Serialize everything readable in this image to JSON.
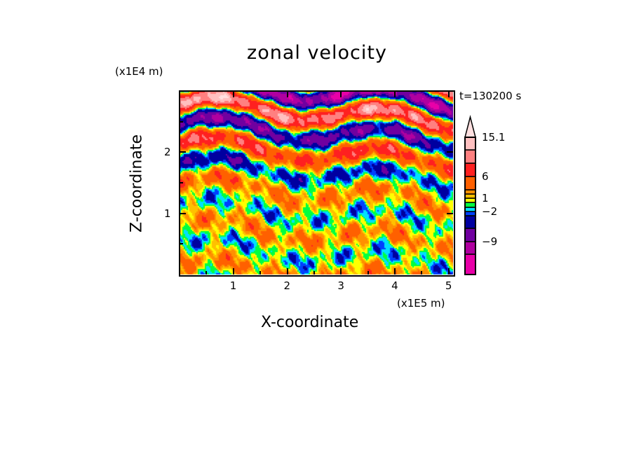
{
  "chart_data": {
    "type": "heatmap",
    "title": "zonal velocity",
    "xlabel": "X-coordinate",
    "ylabel": "Z-coordinate",
    "x_unit": "(x1E5 m)",
    "y_unit": "(x1E4 m)",
    "annotation": "t=130200 s",
    "xlim": [
      0,
      5.08
    ],
    "ylim": [
      0,
      3.0
    ],
    "xticks": [
      {
        "v": 1,
        "label": "1"
      },
      {
        "v": 2,
        "label": "2"
      },
      {
        "v": 3,
        "label": "3"
      },
      {
        "v": 4,
        "label": "4"
      },
      {
        "v": 5,
        "label": "5"
      }
    ],
    "yticks": [
      {
        "v": 1,
        "label": "1"
      },
      {
        "v": 2,
        "label": "2"
      }
    ],
    "colorbar": {
      "levels": [
        -15,
        -12,
        -9,
        -6,
        -3,
        -2,
        -1,
        0,
        1,
        2,
        3,
        6,
        9,
        12,
        15.1
      ],
      "colors": [
        "#e800a8",
        "#b000a0",
        "#7000a0",
        "#0000a0",
        "#0040ff",
        "#00e0ff",
        "#00ff40",
        "#ffff00",
        "#ffc000",
        "#ff9000",
        "#ff6000",
        "#ff2020",
        "#ff8080",
        "#ffc0c0"
      ],
      "over_color": "#ffe0e0",
      "labels": [
        {
          "v": 15.1,
          "label": "15.1"
        },
        {
          "v": 6,
          "label": "6"
        },
        {
          "v": 1,
          "label": "1"
        },
        {
          "v": -2,
          "label": "-2"
        },
        {
          "v": -9,
          "label": "-9"
        }
      ]
    }
  }
}
